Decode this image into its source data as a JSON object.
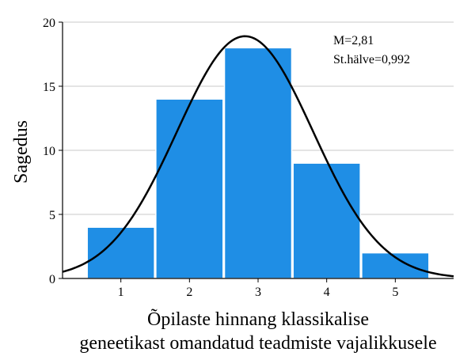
{
  "chart_data": {
    "type": "bar",
    "categories": [
      "1",
      "2",
      "3",
      "4",
      "5"
    ],
    "values": [
      4,
      14,
      18,
      9,
      2
    ],
    "ylabel": "Sagedus",
    "xlabel_lines": [
      "Õpilaste hinnang klassikalise",
      "geneetikast omandatud teadmiste vajalikkusele"
    ],
    "ylim": [
      0,
      20
    ],
    "yticks": [
      0,
      5,
      10,
      15,
      20
    ],
    "xlim": [
      0.15,
      5.85
    ],
    "bar_color": "#1F8EE5",
    "grid": true,
    "normal_curve": {
      "mean": 2.81,
      "sd": 0.992,
      "n": 47
    },
    "annotations": [
      "M=2,81",
      "St.hälve=0,992"
    ]
  }
}
